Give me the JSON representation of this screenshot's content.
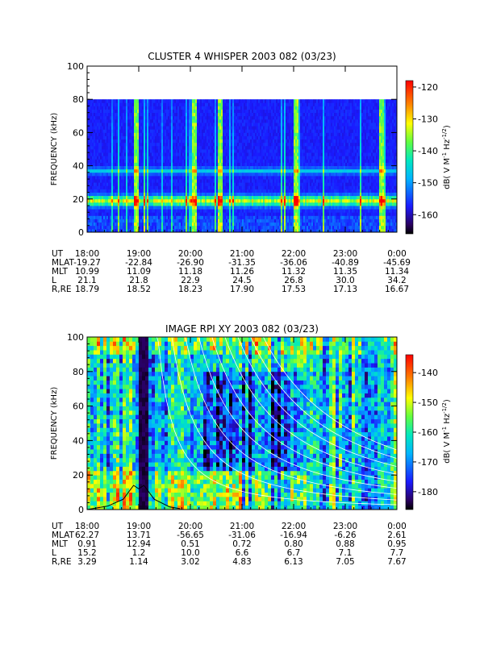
{
  "chart_data": [
    {
      "type": "heatmap",
      "title": "CLUSTER 4 WHISPER 2003 082 (03/23)",
      "ylabel": "FREQUENCY (kHz)",
      "ylim": [
        0,
        100
      ],
      "yticks": [
        "0",
        "20",
        "40",
        "60",
        "80",
        "100"
      ],
      "x": [
        "18:00",
        "19:00",
        "20:00",
        "21:00",
        "22:00",
        "23:00",
        "0:00"
      ],
      "data_ylim": [
        0,
        80
      ],
      "colorbar": {
        "label": "dB( V M⁻¹ Hz⁻¹ᐟ²)",
        "ticks": [
          "-120",
          "-130",
          "-140",
          "-150",
          "-160"
        ],
        "range": [
          -166,
          -118
        ]
      },
      "ephemeris": [
        {
          "label": "UT",
          "values": [
            "18:00",
            "19:00",
            "20:00",
            "21:00",
            "22:00",
            "23:00",
            "0:00"
          ]
        },
        {
          "label": "MLAT",
          "values": [
            "-19.27",
            "-22.84",
            "-26.90",
            "-31.35",
            "-36.06",
            "-40.89",
            "-45.69"
          ]
        },
        {
          "label": "MLT",
          "values": [
            "10.99",
            "11.09",
            "11.18",
            "11.26",
            "11.32",
            "11.35",
            "11.34"
          ]
        },
        {
          "label": "L",
          "values": [
            "21.1",
            "21.8",
            "22.9",
            "24.5",
            "26.8",
            "30.0",
            "34.2"
          ]
        },
        {
          "label": "R,RE",
          "values": [
            "18.79",
            "18.52",
            "18.23",
            "17.90",
            "17.53",
            "17.13",
            "16.67"
          ]
        }
      ],
      "features": {
        "bands_khz": [
          {
            "center": 18,
            "level": -127
          },
          {
            "center": 36,
            "level": -142
          }
        ],
        "bright_spikes_ut_hours": [
          18.95,
          20.05,
          20.55,
          22.02,
          23.7
        ],
        "colors": [
          "#2a0060",
          "#1a1aff",
          "#00b4ff",
          "#00e8c0",
          "#60ff40",
          "#ffff00",
          "#ff8000",
          "#ff0000"
        ]
      }
    },
    {
      "type": "heatmap",
      "title": "IMAGE RPI XY 2003 082 (03/23)",
      "ylabel": "FREQUENCY (kHz)",
      "ylim": [
        0,
        100
      ],
      "yticks": [
        "0",
        "20",
        "40",
        "60",
        "80",
        "100"
      ],
      "x": [
        "18:00",
        "19:00",
        "20:00",
        "21:00",
        "22:00",
        "23:00",
        "0:00"
      ],
      "colorbar": {
        "label": "dB( V M⁻¹ Hz⁻¹ᐟ²)",
        "ticks": [
          "-140",
          "-150",
          "-160",
          "-170",
          "-180"
        ],
        "range": [
          -186,
          -134
        ]
      },
      "ephemeris": [
        {
          "label": "UT",
          "values": [
            "18:00",
            "19:00",
            "20:00",
            "21:00",
            "22:00",
            "23:00",
            "0:00"
          ]
        },
        {
          "label": "MLAT",
          "values": [
            "62.27",
            "13.71",
            "-56.65",
            "-31.06",
            "-16.94",
            "-6.26",
            "2.61"
          ]
        },
        {
          "label": "MLT",
          "values": [
            "0.91",
            "12.94",
            "0.51",
            "0.72",
            "0.80",
            "0.88",
            "0.95"
          ]
        },
        {
          "label": "L",
          "values": [
            "15.2",
            "1.2",
            "10.0",
            "6.6",
            "6.7",
            "7.1",
            "7.7"
          ]
        },
        {
          "label": "R,RE",
          "values": [
            "3.29",
            "1.14",
            "3.02",
            "4.83",
            "6.13",
            "7.05",
            "7.67"
          ]
        }
      ],
      "features": {
        "black_gap_ut_hours": [
          18.95,
          19.15
        ],
        "overlay_curves_count": 9,
        "colors": [
          "#2a0060",
          "#1a1aff",
          "#00b4ff",
          "#00e8c0",
          "#60ff40",
          "#ffff00",
          "#ff8000",
          "#ff0000"
        ]
      }
    }
  ]
}
